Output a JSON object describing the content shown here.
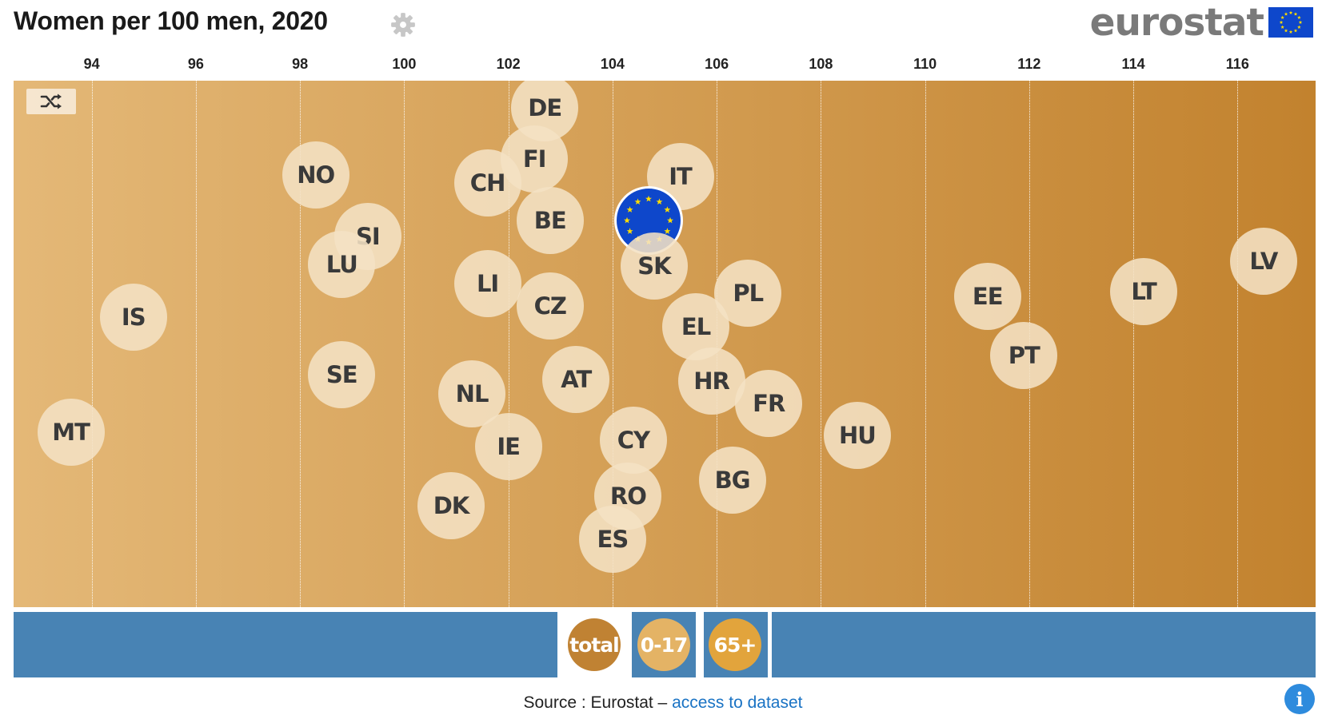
{
  "title": "Women per 100 men, 2020",
  "logo_text": "eurostat",
  "colors": {
    "bubble": "#f4e1c4",
    "eu": "#0e47cb",
    "bar": "#4883b4",
    "total": "#c08233",
    "age_0_17": "#e4b365",
    "age_65": "#e2a43c"
  },
  "controls": {
    "total": "total",
    "age_0_17": "0-17",
    "age_65": "65+"
  },
  "source_prefix": "Source : Eurostat – ",
  "source_link": "access to dataset",
  "chart_data": {
    "type": "scatter",
    "title": "Women per 100 men, 2020",
    "xlim": [
      92.5,
      117.5
    ],
    "xticks": [
      94,
      96,
      98,
      100,
      102,
      104,
      106,
      108,
      110,
      112,
      114,
      116
    ],
    "grid": true,
    "points": [
      {
        "label": "DE",
        "x": 102.7
      },
      {
        "label": "FI",
        "x": 102.5
      },
      {
        "label": "CH",
        "x": 101.6
      },
      {
        "label": "NO",
        "x": 98.3
      },
      {
        "label": "IT",
        "x": 105.3
      },
      {
        "label": "BE",
        "x": 102.8
      },
      {
        "label": "EU",
        "x": 104.7
      },
      {
        "label": "SI",
        "x": 99.3
      },
      {
        "label": "LU",
        "x": 98.8
      },
      {
        "label": "SK",
        "x": 104.8
      },
      {
        "label": "LI",
        "x": 101.6
      },
      {
        "label": "CZ",
        "x": 102.8
      },
      {
        "label": "PL",
        "x": 106.6
      },
      {
        "label": "IS",
        "x": 94.8
      },
      {
        "label": "EL",
        "x": 105.6
      },
      {
        "label": "EE",
        "x": 111.2
      },
      {
        "label": "LT",
        "x": 114.2
      },
      {
        "label": "LV",
        "x": 116.5
      },
      {
        "label": "PT",
        "x": 111.9
      },
      {
        "label": "SE",
        "x": 98.8
      },
      {
        "label": "NL",
        "x": 101.3
      },
      {
        "label": "AT",
        "x": 103.3
      },
      {
        "label": "HR",
        "x": 105.9
      },
      {
        "label": "FR",
        "x": 107.0
      },
      {
        "label": "MT",
        "x": 93.6
      },
      {
        "label": "IE",
        "x": 102.0
      },
      {
        "label": "CY",
        "x": 104.4
      },
      {
        "label": "HU",
        "x": 108.7
      },
      {
        "label": "BG",
        "x": 106.3
      },
      {
        "label": "RO",
        "x": 104.3
      },
      {
        "label": "DK",
        "x": 100.9
      },
      {
        "label": "ES",
        "x": 104.0
      }
    ]
  }
}
